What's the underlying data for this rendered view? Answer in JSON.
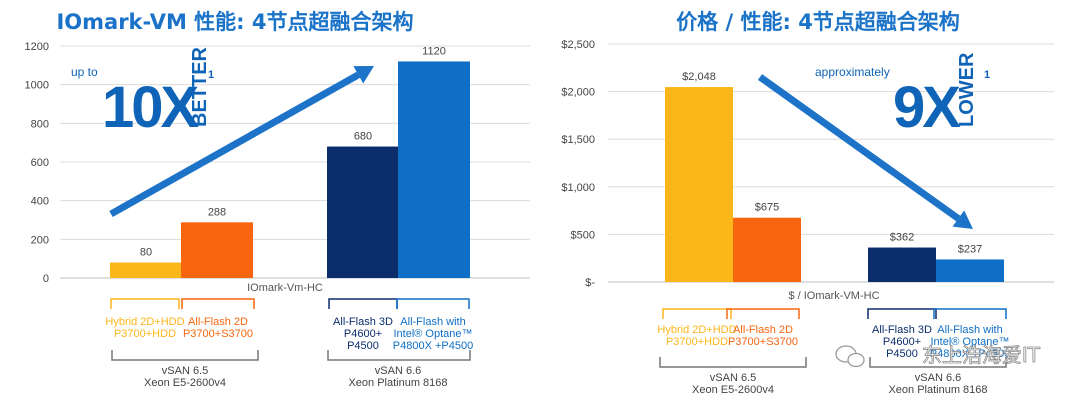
{
  "colors": {
    "gold": "#fbb61a",
    "orange": "#f7660f",
    "navy": "#0c2d6b",
    "blue": "#0f6fc6",
    "title": "#1a73c8",
    "arrow": "#1c73c8"
  },
  "chart_data": [
    {
      "type": "bar",
      "title": "IOmark-VM 性能: 4节点超融合架构",
      "xlabel": "IOmark-Vm-HC",
      "ylabel": "",
      "ylim": [
        0,
        1200
      ],
      "yticks": [
        "0",
        "200",
        "400",
        "600",
        "800",
        "1000",
        "1200"
      ],
      "bars": [
        {
          "group": 0,
          "value": 80,
          "label": "80",
          "color": "#fbb61a"
        },
        {
          "group": 0,
          "value": 288,
          "label": "288",
          "color": "#f7660f"
        },
        {
          "group": 1,
          "value": 680,
          "label": "680",
          "color": "#0c2d6b"
        },
        {
          "group": 1,
          "value": 1120,
          "label": "1120",
          "color": "#0f6fc6"
        }
      ],
      "categories": [
        {
          "lines": [
            "Hybrid 2D+HDD",
            "P3700+HDD"
          ],
          "color": "#fbb61a"
        },
        {
          "lines": [
            "All-Flash 2D",
            "P3700+S3700"
          ],
          "color": "#f7660f"
        },
        {
          "lines": [
            "All-Flash 3D",
            "P4600+",
            "P4500"
          ],
          "color": "#0c2d6b"
        },
        {
          "lines": [
            "All-Flash with",
            "Intel® Optane™",
            "P4800X +P4500"
          ],
          "color": "#0f6fc6"
        }
      ],
      "groups": [
        {
          "lines": [
            "vSAN 6.5",
            "Xeon E5-2600v4"
          ]
        },
        {
          "lines": [
            "vSAN 6.6",
            "Xeon Platinum 8168"
          ]
        }
      ],
      "callout": {
        "prefix": "up to",
        "big": "10X",
        "word": "BETTER",
        "sup": "1"
      }
    },
    {
      "type": "bar",
      "title": "价格 / 性能: 4节点超融合架构",
      "xlabel": "$ / IOmark-VM-HC",
      "ylabel": "",
      "ylim": [
        0,
        2500
      ],
      "yticks": [
        "$-",
        "$500",
        "$1,000",
        "$1,500",
        "$2,000",
        "$2,500"
      ],
      "bars": [
        {
          "group": 0,
          "value": 2048,
          "label": "$2,048",
          "color": "#fbb61a"
        },
        {
          "group": 0,
          "value": 675,
          "label": "$675",
          "color": "#f7660f"
        },
        {
          "group": 1,
          "value": 362,
          "label": "$362",
          "color": "#0c2d6b"
        },
        {
          "group": 1,
          "value": 237,
          "label": "$237",
          "color": "#0f6fc6"
        }
      ],
      "categories": [
        {
          "lines": [
            "Hybrid 2D+HDD",
            "P3700+HDD"
          ],
          "color": "#fbb61a"
        },
        {
          "lines": [
            "All-Flash 2D",
            "P3700+S3700"
          ],
          "color": "#f7660f"
        },
        {
          "lines": [
            "All-Flash 3D",
            "P4600+",
            "P4500"
          ],
          "color": "#0c2d6b"
        },
        {
          "lines": [
            "All-Flash with",
            "Intel® Optane™",
            "P4800X +P4500"
          ],
          "color": "#0f6fc6"
        }
      ],
      "groups": [
        {
          "lines": [
            "vSAN 6.5",
            "Xeon E5-2600v4"
          ]
        },
        {
          "lines": [
            "vSAN 6.6",
            "Xeon Platinum 8168"
          ]
        }
      ],
      "callout": {
        "prefix": "approximately",
        "big": "9X",
        "word": "LOWER",
        "sup": "1"
      }
    }
  ],
  "watermark": "东上浩海爱IT"
}
